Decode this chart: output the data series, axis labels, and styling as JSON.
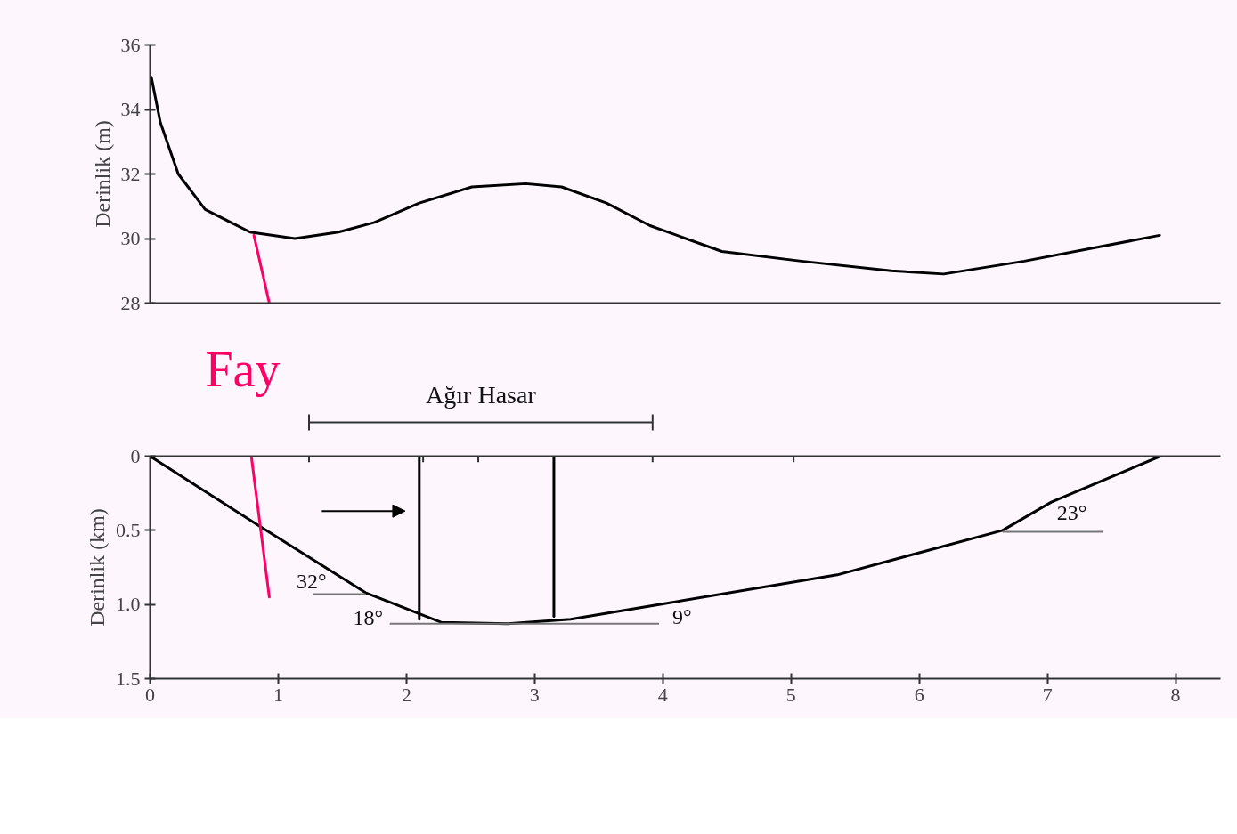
{
  "chart_data": [
    {
      "type": "line",
      "ylabel": "Derinlik (m)",
      "x": [
        0.01,
        0.08,
        0.22,
        0.43,
        0.78,
        1.13,
        1.47,
        1.75,
        2.1,
        2.51,
        2.93,
        3.21,
        3.56,
        3.9,
        4.46,
        5.08,
        5.78,
        6.19,
        6.82,
        7.875
      ],
      "series": [
        {
          "color": "#000000",
          "values": [
            35.0,
            33.6,
            32.0,
            30.9,
            30.2,
            30.0,
            30.2,
            30.5,
            31.1,
            31.6,
            31.7,
            31.6,
            31.1,
            30.4,
            29.6,
            29.3,
            29.0,
            28.9,
            29.3,
            30.1
          ]
        },
        {
          "color": "#ff0066",
          "x": [
            0.81,
            0.93
          ],
          "values": [
            30.1,
            28
          ]
        }
      ],
      "xlim": [
        0,
        8.35
      ],
      "ylim": [
        28,
        36
      ],
      "yticks": [
        28,
        30,
        32,
        34,
        36
      ],
      "tick_labels": "y",
      "grid": false
    },
    {
      "type": "line",
      "ylabel": "Derinlik (km)",
      "x": [
        0,
        0.85,
        1.68,
        2.27,
        2.79,
        3.28,
        3.97,
        5.36,
        6.65,
        7.03,
        7.88
      ],
      "series": [
        {
          "color": "#000000",
          "values": [
            0,
            0.47,
            0.92,
            1.12,
            1.13,
            1.1,
            1.0,
            0.8,
            0.5,
            0.31,
            0
          ]
        },
        {
          "color": "#ff0066",
          "x": [
            0.79,
            0.93
          ],
          "values": [
            0,
            0.95
          ]
        },
        {
          "color": "#000000",
          "x": [
            2.1,
            2.1
          ],
          "values": [
            0,
            1.1
          ]
        },
        {
          "color": "#000000",
          "x": [
            3.15,
            3.15
          ],
          "values": [
            0,
            1.08
          ]
        }
      ],
      "xlim": [
        0,
        8.35
      ],
      "xticks": [
        0,
        1,
        2,
        3,
        4,
        5,
        6,
        7,
        8
      ],
      "ylim": [
        1.5,
        0
      ],
      "yticks": [
        0,
        {
          "value": 0.5,
          "label": "0.5"
        },
        {
          "value": 1,
          "label": "1.0"
        },
        1.5
      ],
      "annotations": [
        "Fay",
        "Ağır Hasar",
        {
          "text": "32°",
          "x": 1.68,
          "y": 0.92
        },
        {
          "text": "18°",
          "x": 2.27,
          "y": 1.12
        },
        "9°",
        {
          "text": "23°",
          "x": 6.65,
          "y": 0.5
        }
      ],
      "grid": false
    }
  ]
}
